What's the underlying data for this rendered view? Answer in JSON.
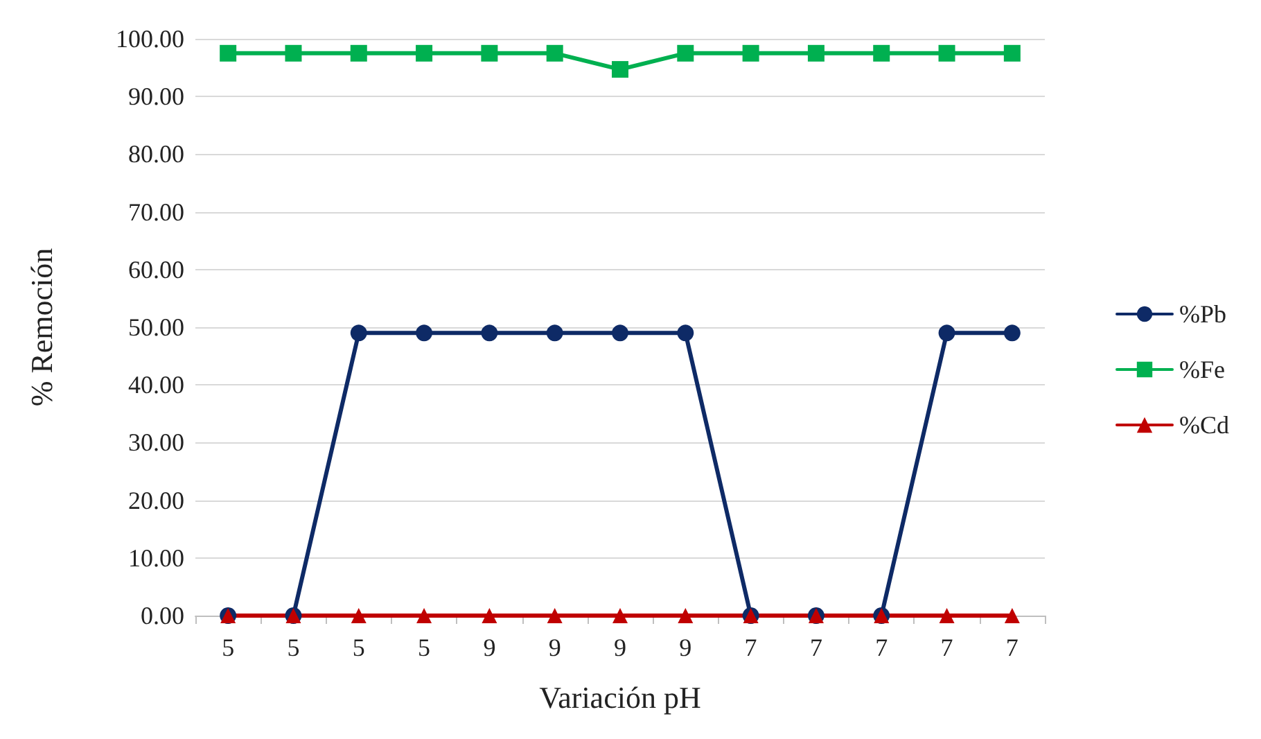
{
  "chart_data": {
    "type": "line",
    "xlabel": "Variación pH",
    "ylabel": "% Remoción",
    "categories": [
      "5",
      "5",
      "5",
      "5",
      "9",
      "9",
      "9",
      "9",
      "7",
      "7",
      "7",
      "7",
      "7"
    ],
    "series": [
      {
        "name": "%Pb",
        "color": "#0e2a66",
        "marker": "circle",
        "values": [
          0,
          0,
          49,
          49,
          49,
          49,
          49,
          49,
          0,
          0,
          0,
          49,
          49
        ]
      },
      {
        "name": "%Fe",
        "color": "#00b050",
        "marker": "square",
        "values": [
          97.5,
          97.5,
          97.5,
          97.5,
          97.5,
          97.5,
          94.7,
          97.5,
          97.5,
          97.5,
          97.5,
          97.5,
          97.5
        ]
      },
      {
        "name": "%Cd",
        "color": "#c00000",
        "marker": "triangle",
        "values": [
          0,
          0,
          0,
          0,
          0,
          0,
          0,
          0,
          0,
          0,
          0,
          0,
          0
        ]
      }
    ],
    "ylim": [
      0,
      100
    ],
    "yticks": [
      {
        "value": 0,
        "label": "0.00"
      },
      {
        "value": 10,
        "label": "10.00"
      },
      {
        "value": 20,
        "label": "20.00"
      },
      {
        "value": 30,
        "label": "30.00"
      },
      {
        "value": 40,
        "label": "40.00"
      },
      {
        "value": 50,
        "label": "50.00"
      },
      {
        "value": 60,
        "label": "60.00"
      },
      {
        "value": 70,
        "label": "70.00"
      },
      {
        "value": 80,
        "label": "80.00"
      },
      {
        "value": 90,
        "label": "90.00"
      },
      {
        "value": 100,
        "label": "100.00"
      }
    ],
    "grid": "y",
    "legend": "right",
    "line_style": "solid"
  }
}
